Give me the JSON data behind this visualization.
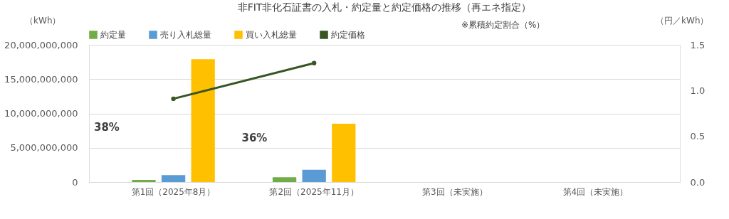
{
  "chart_data": {
    "type": "bar",
    "title": "非FIT非化石証書の入札・約定量と約定価格の推移（再エネ指定）",
    "categories": [
      "第1回（2025年8月）",
      "第2回（2025年11月）",
      "第3回（未実施）",
      "第4回（未実施）"
    ],
    "series": [
      {
        "name": "約定量",
        "color": "#70ad47",
        "values": [
          300000000,
          700000000,
          null,
          null
        ]
      },
      {
        "name": "売り入札総量",
        "color": "#5b9bd5",
        "values": [
          1000000000,
          1800000000,
          null,
          null
        ]
      },
      {
        "name": "買い入札総量",
        "color": "#ffc000",
        "values": [
          17900000000,
          8500000000,
          null,
          null
        ]
      },
      {
        "name": "約定価格",
        "color": "#375623",
        "type": "line",
        "axis": "y2",
        "values": [
          0.91,
          1.3,
          null,
          null
        ]
      }
    ],
    "ylabel": "（kWh）",
    "y2label": "（円／kWh）",
    "ylim": [
      0,
      20000000000
    ],
    "yticks": [
      {
        "value": 0,
        "label": "0"
      },
      {
        "value": 5000000000,
        "label": "5,000,000,000"
      },
      {
        "value": 10000000000,
        "label": "10,000,000,000"
      },
      {
        "value": 15000000000,
        "label": "15,000,000,000"
      },
      {
        "value": 20000000000,
        "label": "20,000,000,000"
      }
    ],
    "y2lim": [
      0,
      1.5
    ],
    "y2ticks": [
      {
        "value": 0,
        "label": "0.0"
      },
      {
        "value": 0.5,
        "label": "0.5"
      },
      {
        "value": 1,
        "label": "1.0"
      },
      {
        "value": 1.5,
        "label": "1.5"
      }
    ],
    "annotations": [
      "※累積約定割合（%）",
      "38%",
      "36%"
    ],
    "grid": "y",
    "legend": "top",
    "marker": "circle",
    "line_style": "solid"
  }
}
